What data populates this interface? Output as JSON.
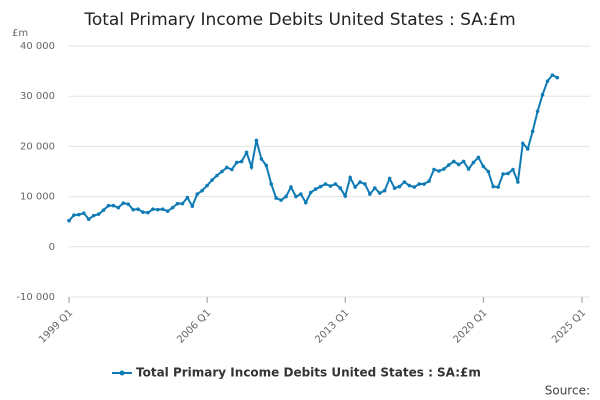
{
  "chart_data": {
    "type": "line",
    "title": "Total Primary Income Debits United States : SA:£m",
    "y_label": "£m",
    "source": "Source:",
    "categories": [
      "1999 Q1",
      null,
      null,
      null,
      null,
      null,
      null,
      null,
      null,
      null,
      null,
      null,
      null,
      null,
      null,
      null,
      null,
      null,
      null,
      null,
      null,
      null,
      null,
      null,
      null,
      null,
      null,
      null,
      "2006 Q1",
      null,
      null,
      null,
      null,
      null,
      null,
      null,
      null,
      null,
      null,
      null,
      null,
      null,
      null,
      null,
      null,
      null,
      null,
      null,
      null,
      null,
      null,
      null,
      null,
      null,
      null,
      null,
      "2013 Q1",
      null,
      null,
      null,
      null,
      null,
      null,
      null,
      null,
      null,
      null,
      null,
      null,
      null,
      null,
      null,
      null,
      null,
      null,
      null,
      null,
      null,
      null,
      null,
      null,
      null,
      null,
      null,
      "2020 Q1",
      null,
      null,
      null,
      null,
      null,
      null,
      null,
      null,
      null,
      null,
      null,
      null,
      null,
      null,
      null,
      null,
      null,
      null,
      null,
      "2025 Q1"
    ],
    "series": [
      {
        "name": "Total Primary Income Debits United States : SA:£m",
        "color": "#0f7bb5",
        "values": [
          5200,
          6300,
          6400,
          6700,
          5500,
          6200,
          6500,
          7300,
          8200,
          8200,
          7800,
          8700,
          8500,
          7400,
          7500,
          6900,
          6800,
          7500,
          7400,
          7500,
          7100,
          7800,
          8600,
          8600,
          9800,
          8100,
          10500,
          11200,
          12200,
          13300,
          14200,
          15000,
          15800,
          15400,
          16800,
          17000,
          18800,
          15900,
          21200,
          17500,
          16200,
          12500,
          9700,
          9300,
          10000,
          11900,
          10000,
          10500,
          8800,
          10800,
          11500,
          12000,
          12500,
          12100,
          12500,
          11700,
          10100,
          13800,
          11900,
          12900,
          12500,
          10500,
          11700,
          10700,
          11200,
          13600,
          11700,
          12000,
          12900,
          12200,
          11900,
          12500,
          12500,
          13100,
          15400,
          15100,
          15500,
          16300,
          17000,
          16400,
          17000,
          15500,
          16800,
          17800,
          16000,
          15000,
          12000,
          11900,
          14500,
          14600,
          15400,
          12900,
          20600,
          19500,
          23000,
          27000,
          30300,
          33000,
          34200,
          33700,
          null,
          null,
          null,
          null,
          null
        ]
      }
    ],
    "ylim": [
      -10000,
      40000
    ],
    "yticks": [
      {
        "value": -10000,
        "label": "-10 000"
      },
      0,
      {
        "value": 10000,
        "label": "10 000"
      },
      {
        "value": 20000,
        "label": "20 000"
      },
      {
        "value": 30000,
        "label": "30 000"
      },
      {
        "value": 40000,
        "label": "40 000"
      }
    ],
    "grid": true
  }
}
